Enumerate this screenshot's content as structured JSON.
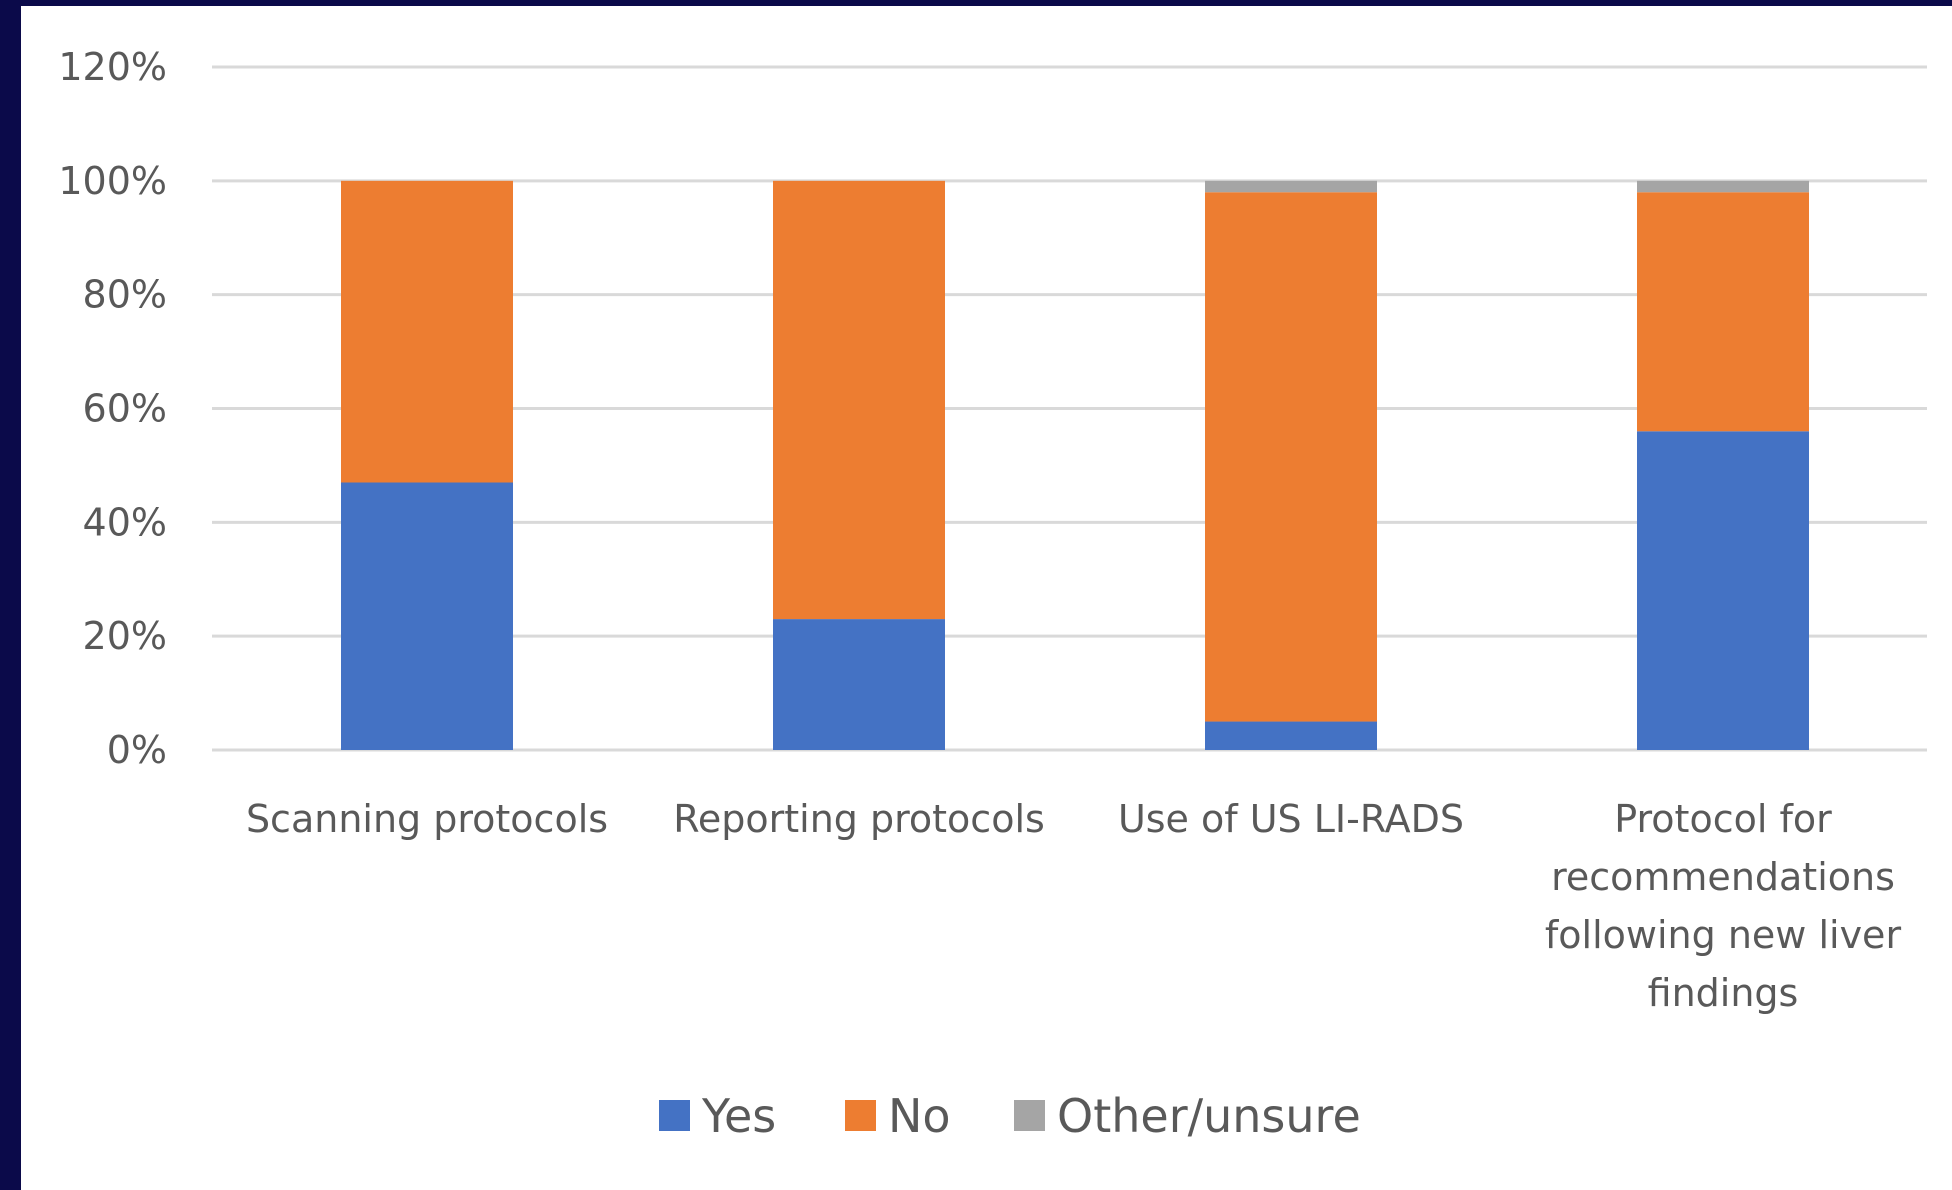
{
  "chart_data": {
    "type": "bar",
    "stacked": true,
    "categories": [
      "Scanning protocols",
      "Reporting protocols",
      "Use of US LI-RADS",
      "Protocol for recommendations following new liver findings"
    ],
    "category_lines": [
      [
        "Scanning protocols"
      ],
      [
        "Reporting protocols"
      ],
      [
        "Use of US LI-RADS"
      ],
      [
        "Protocol for",
        "recommendations",
        "following new liver",
        "findings"
      ]
    ],
    "series": [
      {
        "name": "Yes",
        "values": [
          47,
          23,
          5,
          56
        ],
        "color": "#4472c4"
      },
      {
        "name": "No",
        "values": [
          53,
          77,
          93,
          42
        ],
        "color": "#ed7d31"
      },
      {
        "name": "Other/unsure",
        "values": [
          0,
          0,
          2,
          2
        ],
        "color": "#a5a5a5"
      }
    ],
    "ylim": [
      0,
      120
    ],
    "yticks": [
      "0%",
      "20%",
      "40%",
      "60%",
      "80%",
      "100%",
      "120%"
    ],
    "ytick_values": [
      0,
      20,
      40,
      60,
      80,
      100,
      120
    ],
    "title": "",
    "xlabel": "",
    "ylabel": "",
    "grid": true,
    "legend_position": "bottom"
  }
}
